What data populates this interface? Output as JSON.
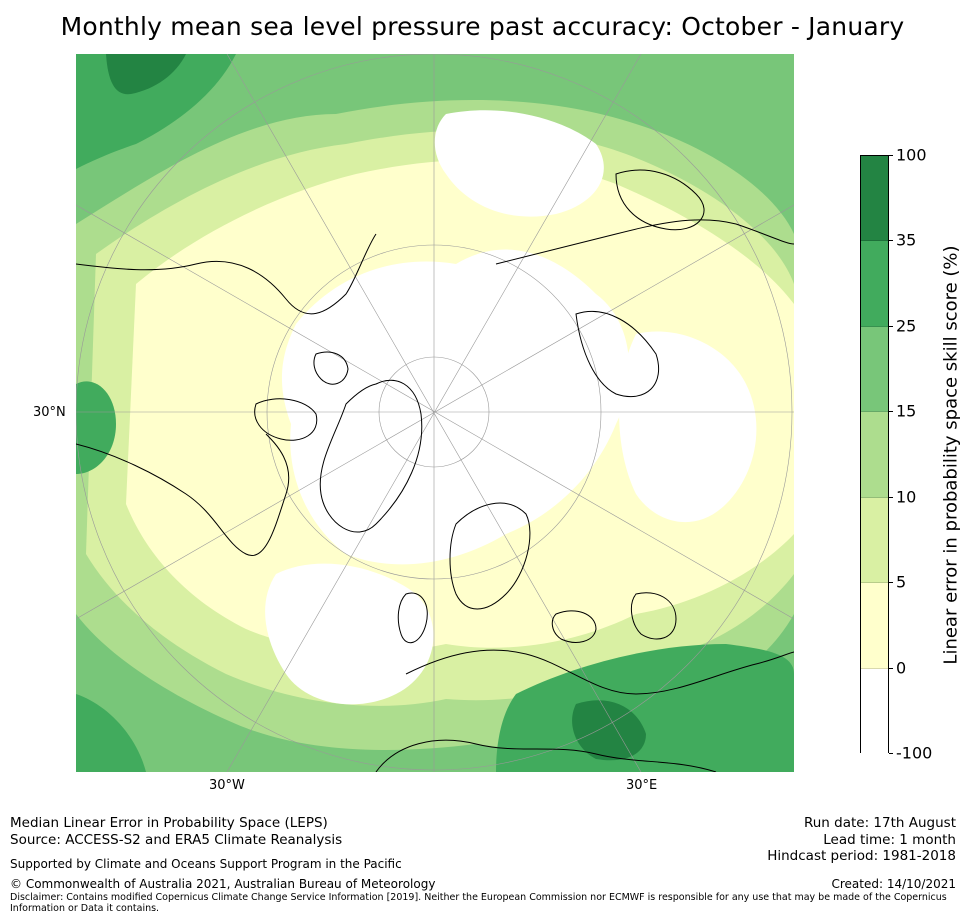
{
  "title": "Monthly mean sea level pressure past accuracy: October - January",
  "map": {
    "lat_label": "30°N",
    "lon_labels": [
      "30°W",
      "30°E"
    ],
    "colors": {
      "ocean_light": "#ffffcc",
      "white": "#ffffff",
      "light_green": "#d9f0a3",
      "mid_green": "#addd8e",
      "green": "#78c679",
      "dark_green": "#41ab5d",
      "darkest_green": "#238443"
    }
  },
  "colorbar": {
    "label": "Linear error in probability space skill score (%)",
    "ticks": [
      "100",
      "35",
      "25",
      "15",
      "10",
      "5",
      "0",
      "-100"
    ],
    "segments": [
      "#238443",
      "#41ab5d",
      "#78c679",
      "#addd8e",
      "#d9f0a3",
      "#ffffcc",
      "#ffffff"
    ]
  },
  "footer": {
    "line1": "Median Linear Error in Probability Space (LEPS)",
    "line2": "Source: ACCESS-S2 and ERA5 Climate Reanalysis",
    "support": "Supported by Climate and Oceans Support Program in the Pacific",
    "copyright": "© Commonwealth of Australia 2021, Australian Bureau of Meteorology",
    "disclaimer": "Disclaimer: Contains modified Copernicus Climate Change Service Information [2019]. Neither the European Commission nor ECMWF is responsible for any use that may be made of the Copernicus Information or Data it contains.",
    "run_date": "Run date: 17th August",
    "lead_time": "Lead time: 1 month",
    "hindcast": "Hindcast period: 1981-2018",
    "created": "Created: 14/10/2021"
  }
}
